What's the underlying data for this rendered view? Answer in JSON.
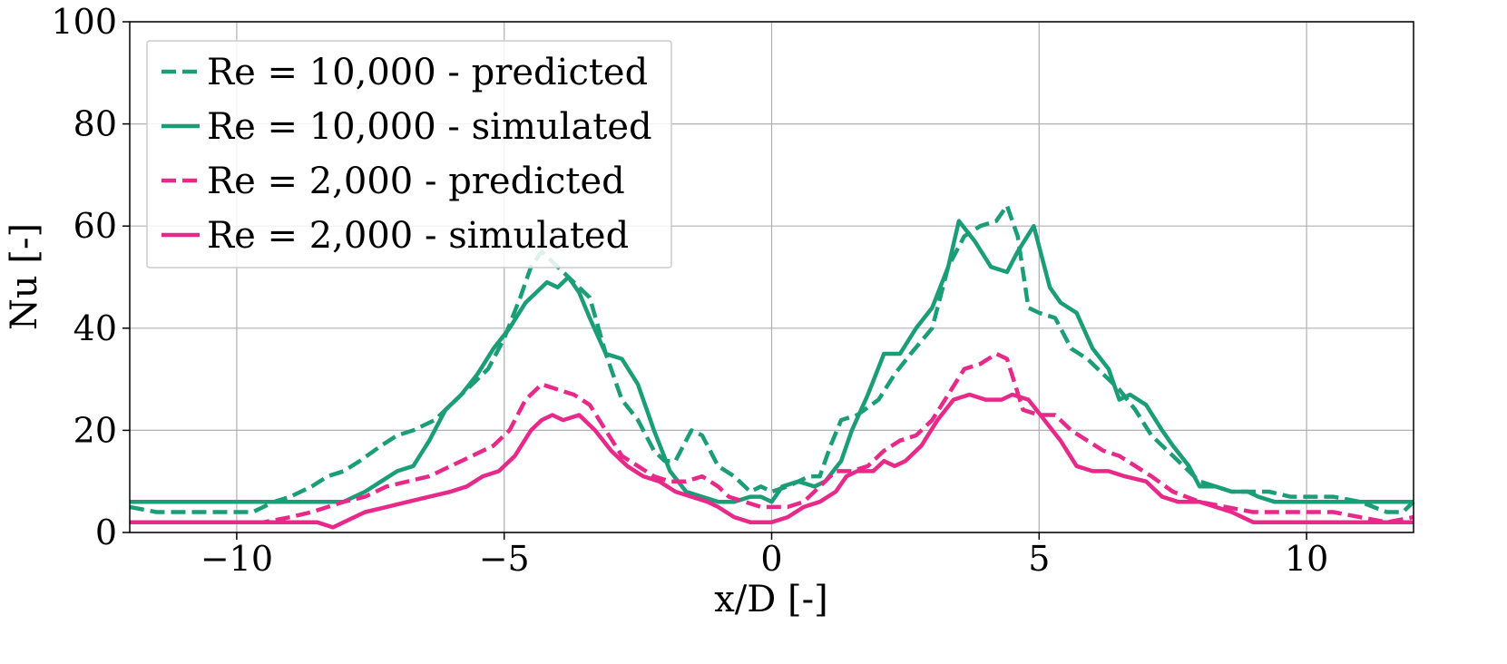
{
  "chart_data": {
    "type": "line",
    "title": "",
    "xlabel": "x/D [-]",
    "ylabel": "Nu [-]",
    "xlim": [
      -12,
      12
    ],
    "ylim": [
      0,
      100
    ],
    "xticks": [
      -10,
      -5,
      0,
      5,
      10
    ],
    "xtick_labels": [
      "−10",
      "−5",
      "0",
      "5",
      "10"
    ],
    "yticks": [
      0,
      20,
      40,
      60,
      80,
      100
    ],
    "ytick_labels": [
      "0",
      "20",
      "40",
      "60",
      "80",
      "100"
    ],
    "grid": true,
    "legend_position": "top-left",
    "series": [
      {
        "name": "Re = 10,000 - predicted",
        "color": "#1b9e77",
        "style": "dashed",
        "x": [
          -12,
          -11.5,
          -11,
          -10.5,
          -10,
          -9.7,
          -9.3,
          -9,
          -8.6,
          -8.3,
          -8,
          -7.7,
          -7.3,
          -7,
          -6.7,
          -6.3,
          -6,
          -5.7,
          -5.3,
          -5,
          -4.7,
          -4.5,
          -4.3,
          -4,
          -3.7,
          -3.4,
          -3.1,
          -2.8,
          -2.5,
          -2.2,
          -2,
          -1.8,
          -1.5,
          -1.3,
          -1,
          -0.7,
          -0.4,
          -0.2,
          0,
          0.3,
          0.5,
          0.7,
          0.9,
          1.1,
          1.3,
          1.6,
          2,
          2.3,
          2.6,
          3,
          3.3,
          3.6,
          3.9,
          4.2,
          4.4,
          4.6,
          4.8,
          5,
          5.3,
          5.6,
          5.9,
          6.2,
          6.5,
          6.8,
          7.1,
          7.4,
          7.7,
          8,
          8.3,
          8.6,
          9,
          9.3,
          9.7,
          10,
          10.5,
          11,
          11.5,
          11.8,
          12
        ],
        "values": [
          5,
          4,
          4,
          4,
          4,
          4,
          6,
          7,
          9,
          11,
          12,
          14,
          17,
          19,
          20,
          22,
          25,
          28,
          32,
          38,
          46,
          52,
          55,
          52,
          49,
          46,
          35,
          26,
          22,
          16,
          14,
          14,
          20,
          19,
          13,
          11,
          8,
          9,
          8,
          9,
          10,
          11,
          11,
          17,
          22,
          23,
          26,
          31,
          35,
          40,
          52,
          58,
          60,
          61,
          64,
          58,
          44,
          43,
          42,
          36,
          34,
          31,
          28,
          24,
          19,
          16,
          13,
          10,
          9,
          8,
          8,
          8,
          7,
          7,
          7,
          6,
          4,
          4,
          6
        ]
      },
      {
        "name": "Re = 10,000 - simulated",
        "color": "#1b9e77",
        "style": "solid",
        "x": [
          -12,
          -11,
          -10,
          -9,
          -8.5,
          -8,
          -7.6,
          -7.3,
          -7,
          -6.7,
          -6.4,
          -6.1,
          -5.8,
          -5.5,
          -5.2,
          -4.9,
          -4.6,
          -4.4,
          -4.2,
          -4,
          -3.8,
          -3.6,
          -3.4,
          -3.1,
          -2.8,
          -2.5,
          -2.2,
          -1.9,
          -1.6,
          -1.3,
          -1,
          -0.7,
          -0.4,
          -0.2,
          0,
          0.2,
          0.5,
          0.8,
          1,
          1.3,
          1.5,
          1.8,
          2.1,
          2.4,
          2.7,
          3,
          3.3,
          3.5,
          3.8,
          4.1,
          4.4,
          4.6,
          4.9,
          5.2,
          5.4,
          5.7,
          6,
          6.3,
          6.5,
          6.7,
          7,
          7.3,
          7.5,
          7.8,
          8,
          8.3,
          8.6,
          8.9,
          9.1,
          9.4,
          9.7,
          10,
          10.5,
          11,
          11.5,
          12
        ],
        "values": [
          6,
          6,
          6,
          6,
          6,
          6,
          8,
          10,
          12,
          13,
          18,
          24,
          27,
          31,
          36,
          40,
          45,
          47,
          49,
          48,
          50,
          47,
          42,
          35,
          34,
          29,
          20,
          12,
          8,
          7,
          6,
          6,
          7,
          7,
          6,
          9,
          10,
          9,
          10,
          14,
          20,
          27,
          35,
          35,
          40,
          44,
          52,
          61,
          57,
          52,
          51,
          55,
          60,
          48,
          45,
          43,
          36,
          32,
          26,
          27,
          25,
          20,
          17,
          13,
          9,
          9,
          8,
          8,
          7,
          6,
          6,
          6,
          6,
          6,
          6,
          6
        ]
      },
      {
        "name": "Re = 2,000 - predicted",
        "color": "#e7298a",
        "style": "dashed",
        "x": [
          -12,
          -11,
          -10,
          -9.5,
          -9,
          -8.6,
          -8.3,
          -8,
          -7.6,
          -7.2,
          -6.8,
          -6.4,
          -6,
          -5.6,
          -5.2,
          -4.9,
          -4.6,
          -4.3,
          -4,
          -3.7,
          -3.4,
          -3.1,
          -2.8,
          -2.5,
          -2.2,
          -1.9,
          -1.6,
          -1.3,
          -1,
          -0.8,
          -0.5,
          -0.2,
          0,
          0.3,
          0.6,
          0.9,
          1.2,
          1.5,
          1.8,
          2.1,
          2.4,
          2.7,
          3,
          3.3,
          3.6,
          3.9,
          4.2,
          4.4,
          4.7,
          5,
          5.3,
          5.6,
          5.9,
          6.2,
          6.5,
          6.8,
          7.1,
          7.5,
          8,
          8.5,
          9,
          9.5,
          10,
          10.5,
          11,
          11.5,
          12
        ],
        "values": [
          2,
          2,
          2,
          2,
          3,
          4,
          5,
          6,
          7,
          9,
          10,
          11,
          13,
          15,
          17,
          20,
          26,
          29,
          28,
          27,
          25,
          20,
          15,
          13,
          11,
          10,
          10,
          11,
          9,
          7,
          6,
          5,
          5,
          5,
          6,
          9,
          12,
          12,
          13,
          16,
          18,
          19,
          22,
          27,
          32,
          33,
          35,
          34,
          24,
          23,
          23,
          20,
          18,
          16,
          15,
          13,
          11,
          8,
          6,
          5,
          4,
          4,
          4,
          4,
          3,
          2,
          3
        ]
      },
      {
        "name": "Re = 2,000 - simulated",
        "color": "#e7298a",
        "style": "solid",
        "x": [
          -12,
          -11,
          -10,
          -9,
          -8.5,
          -8.2,
          -8,
          -7.6,
          -7.2,
          -6.8,
          -6.4,
          -6,
          -5.7,
          -5.4,
          -5.1,
          -4.8,
          -4.5,
          -4.3,
          -4.1,
          -3.9,
          -3.6,
          -3.3,
          -3,
          -2.7,
          -2.4,
          -2.1,
          -1.8,
          -1.5,
          -1.2,
          -1,
          -0.7,
          -0.4,
          -0.2,
          0,
          0.3,
          0.6,
          0.9,
          1.2,
          1.4,
          1.6,
          1.9,
          2.1,
          2.3,
          2.5,
          2.8,
          3.1,
          3.4,
          3.7,
          4,
          4.3,
          4.5,
          4.8,
          5.1,
          5.4,
          5.7,
          6,
          6.3,
          6.6,
          7,
          7.3,
          7.6,
          8,
          8.3,
          8.6,
          9,
          9.5,
          10,
          10.5,
          11,
          11.5,
          12
        ],
        "values": [
          2,
          2,
          2,
          2,
          2,
          1,
          2,
          4,
          5,
          6,
          7,
          8,
          9,
          11,
          12,
          15,
          20,
          22,
          23,
          22,
          23,
          20,
          16,
          13,
          11,
          10,
          8,
          7,
          6,
          5,
          3,
          2,
          2,
          2,
          3,
          5,
          6,
          8,
          11,
          12,
          12,
          14,
          13,
          14,
          17,
          22,
          26,
          27,
          26,
          26,
          27,
          26,
          22,
          18,
          13,
          12,
          12,
          11,
          10,
          7,
          6,
          6,
          5,
          4,
          2,
          2,
          2,
          2,
          2,
          2,
          2
        ]
      }
    ]
  }
}
